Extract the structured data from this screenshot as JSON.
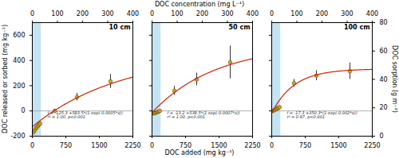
{
  "chart_data": {
    "type": "scatter",
    "xlabel": "DOC added (mg kg⁻¹)",
    "ylabel": "DOC released or sorbed (mg kg⁻¹)",
    "x2label": "DOC concentration (mg L⁻¹)",
    "y2label": "DOC sorption (g m⁻²)",
    "xlim": [
      0,
      2250
    ],
    "xticks": [
      0,
      750,
      1500,
      2250
    ],
    "ylim": [
      -200,
      700
    ],
    "yticks": [
      -200,
      0,
      200,
      400,
      600
    ],
    "x2lim": [
      0,
      400
    ],
    "x2ticks": [
      0,
      100,
      200,
      300,
      400
    ],
    "y2lim": [
      0,
      80
    ],
    "y2ticks": [
      0,
      20,
      40,
      60,
      80
    ],
    "shade": {
      "x": [
        0,
        200
      ],
      "color": "#c5e4f3"
    },
    "hline": 0,
    "panels": [
      {
        "title": "10 cm",
        "annotations": [
          "f = -125.3 +583.5*(1-exp(-0.0005*x))",
          "r² = 1.00, p<0.001"
        ],
        "series": [
          {
            "type": "scatter",
            "color": "#d4a800",
            "x": [
              25,
              50,
              75,
              100,
              125,
              150,
              175,
              500,
              1000,
              1750
            ],
            "values": [
              -170,
              -155,
              -140,
              -130,
              -120,
              -110,
              -100,
              0,
              110,
              235
            ],
            "errors": [
              15,
              15,
              12,
              12,
              10,
              10,
              10,
              15,
              30,
              55
            ]
          },
          {
            "type": "line",
            "color": "#cc2200",
            "fit": {
              "a": -125.3,
              "b": 583.5,
              "k": 0.0005
            }
          }
        ]
      },
      {
        "title": "50 cm",
        "annotations": [
          "f = -13.2 +538.5*(1-exp(-0.0007*x))",
          "r² = 1.00, p<0.001"
        ],
        "series": [
          {
            "type": "scatter",
            "color": "#d4a800",
            "x": [
              25,
              50,
              75,
              100,
              125,
              150,
              175,
              500,
              1000,
              1750
            ],
            "values": [
              -20,
              -18,
              -15,
              -12,
              -8,
              -5,
              0,
              160,
              250,
              385
            ],
            "errors": [
              5,
              5,
              5,
              5,
              5,
              5,
              5,
              35,
              50,
              130
            ]
          },
          {
            "type": "line",
            "color": "#cc2200",
            "fit": {
              "a": -13.2,
              "b": 538.5,
              "k": 0.0007
            }
          }
        ]
      },
      {
        "title": "100 cm",
        "annotations": [
          "f = -17.3 +350.3*(1-exp(-0.002*x))",
          "r² = 0.97, p<0.001"
        ],
        "series": [
          {
            "type": "scatter",
            "color": "#d4a800",
            "x": [
              25,
              50,
              75,
              100,
              125,
              150,
              175,
              500,
              1000,
              1750
            ],
            "values": [
              0,
              5,
              10,
              15,
              20,
              25,
              30,
              220,
              280,
              315
            ],
            "errors": [
              5,
              5,
              5,
              5,
              5,
              5,
              8,
              30,
              40,
              65
            ]
          },
          {
            "type": "line",
            "color": "#cc2200",
            "fit": {
              "a": -17.3,
              "b": 350.3,
              "k": 0.002
            }
          }
        ]
      }
    ]
  }
}
